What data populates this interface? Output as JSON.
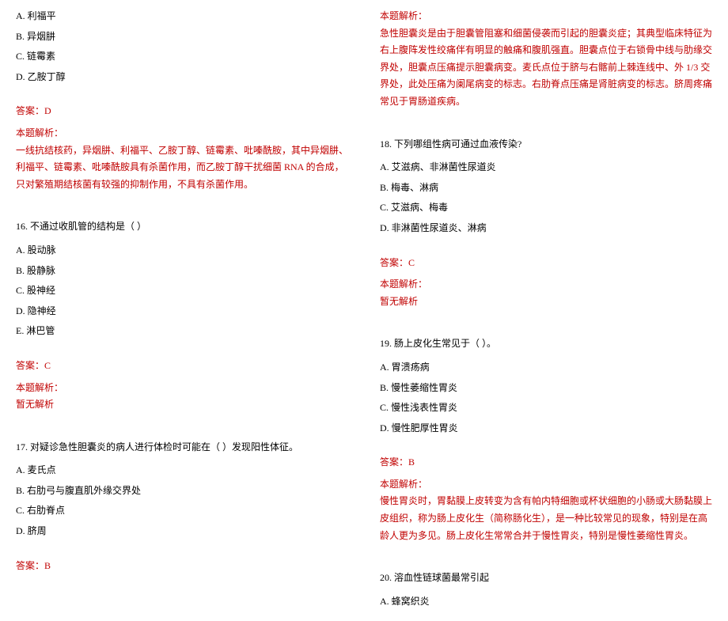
{
  "left": {
    "q15": {
      "options": [
        "A. 利福平",
        "B. 异烟肼",
        "C. 链霉素",
        "D. 乙胺丁醇"
      ],
      "answer": "答案：D",
      "explain_title": "本题解析：",
      "explain_body": "一线抗结核药，异烟肼、利福平、乙胺丁醇、链霉素、吡嗪酰胺，其中异烟肼、利福平、链霉素、吡嗪酰胺具有杀菌作用，而乙胺丁醇干扰细菌 RNA 的合成，只对繁殖期结核菌有较强的抑制作用，不具有杀菌作用。"
    },
    "q16": {
      "title": "16. 不通过收肌管的结构是（ ）",
      "options": [
        "A. 股动脉",
        "B. 股静脉",
        "C. 股神经",
        "D. 隐神经",
        "E. 淋巴管"
      ],
      "answer": "答案：C",
      "explain_title": "本题解析：",
      "explain_body": "暂无解析"
    },
    "q17": {
      "title": "17. 对疑诊急性胆囊炎的病人进行体检时可能在（ ）发现阳性体征。",
      "options": [
        "A. 麦氏点",
        "B. 右肋弓与腹直肌外缘交界处",
        "C. 右肋脊点",
        "D. 脐周"
      ],
      "answer": "答案：B"
    }
  },
  "right": {
    "q17explain": {
      "explain_title": "本题解析：",
      "explain_body": "急性胆囊炎是由于胆囊管阻塞和细菌侵袭而引起的胆囊炎症；其典型临床特征为右上腹阵发性绞痛伴有明显的触痛和腹肌强直。胆囊点位于右锁骨中线与肋缘交界处，胆囊点压痛提示胆囊病变。麦氏点位于脐与右髂前上棘连线中、外 1/3 交界处，此处压痛为阑尾病变的标志。右肋脊点压痛是肾脏病变的标志。脐周疼痛常见于胃肠道疾病。"
    },
    "q18": {
      "title": "18. 下列哪组性病可通过血液传染?",
      "options": [
        "A. 艾滋病、非淋菌性尿道炎",
        "B. 梅毒、淋病",
        "C. 艾滋病、梅毒",
        "D. 非淋菌性尿道炎、淋病"
      ],
      "answer": "答案：C",
      "explain_title": "本题解析：",
      "explain_body": "暂无解析"
    },
    "q19": {
      "title": "19. 肠上皮化生常见于（ ）。",
      "options": [
        "A. 胃溃疡病",
        "B. 慢性萎缩性胃炎",
        "C. 慢性浅表性胃炎",
        "D. 慢性肥厚性胃炎"
      ],
      "answer": "答案：B",
      "explain_title": "本题解析：",
      "explain_body": "慢性胃炎时，胃黏膜上皮转变为含有帕内特细胞或杯状细胞的小肠或大肠黏膜上皮组织，称为肠上皮化生（简称肠化生），是一种比较常见的现象，特别是在高龄人更为多见。肠上皮化生常常合并于慢性胃炎，特别是慢性萎缩性胃炎。"
    },
    "q20": {
      "title": "20. 溶血性链球菌最常引起",
      "options": [
        "A. 蜂窝织炎"
      ]
    }
  }
}
